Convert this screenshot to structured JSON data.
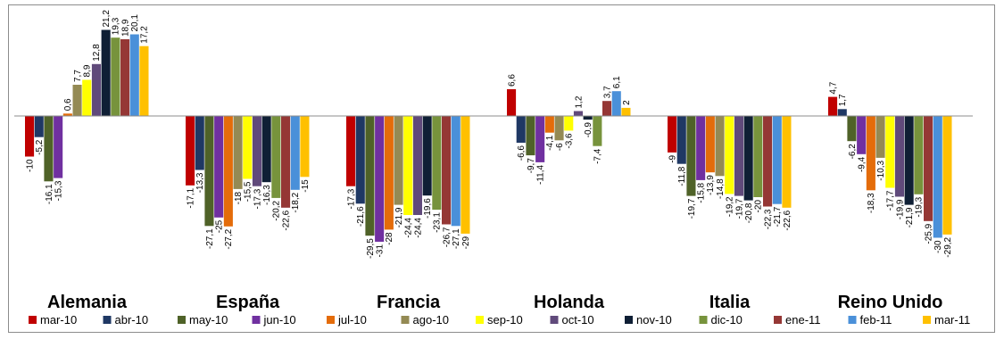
{
  "chart_data": {
    "type": "bar",
    "categories": [
      "Alemania",
      "España",
      "Francia",
      "Holanda",
      "Italia",
      "Reino Unido"
    ],
    "series": [
      {
        "name": "mar-10",
        "color": "#c00000",
        "values": [
          -10,
          -17.1,
          -17.3,
          6.6,
          -9,
          4.7
        ],
        "labels": [
          "-10",
          "-17,1",
          "-17,3",
          "6,6",
          "-9",
          "4,7"
        ]
      },
      {
        "name": "abr-10",
        "color": "#1f3864",
        "values": [
          -5.2,
          -13.3,
          -21.6,
          -6.6,
          -11.8,
          1.7
        ],
        "labels": [
          "-5,2",
          "-13,3",
          "-21,6",
          "-6,6",
          "-11,8",
          "1,7"
        ]
      },
      {
        "name": "may-10",
        "color": "#4f6228",
        "values": [
          -16.1,
          -27.1,
          -29.5,
          -9.7,
          -19.7,
          -6.2
        ],
        "labels": [
          "-16,1",
          "-27,1",
          "-29,5",
          "-9,7",
          "-19,7",
          "-6,2"
        ]
      },
      {
        "name": "jun-10",
        "color": "#7030a0",
        "values": [
          -15.3,
          -25,
          -31,
          -11.4,
          -15.8,
          -9.4
        ],
        "labels": [
          "-15,3",
          "-25",
          "-31",
          "-11,4",
          "-15,8",
          "-9,4"
        ]
      },
      {
        "name": "jul-10",
        "color": "#e46c0a",
        "values": [
          0.6,
          -27.2,
          -28,
          -4.1,
          -13.9,
          -18.3
        ],
        "labels": [
          "0,6",
          "-27,2",
          "-28",
          "-4,1",
          "-13,9",
          "-18,3"
        ]
      },
      {
        "name": "ago-10",
        "color": "#948a54",
        "values": [
          7.7,
          -18,
          -21.9,
          -6,
          -14.8,
          -10.3
        ],
        "labels": [
          "7,7",
          "-18",
          "-21,9",
          "-6",
          "-14,8",
          "-10,3"
        ]
      },
      {
        "name": "sep-10",
        "color": "#ffff00",
        "values": [
          8.9,
          -15.5,
          -24.4,
          -3.6,
          -19.2,
          -17.7
        ],
        "labels": [
          "8,9",
          "-15,5",
          "-24,4",
          "-3,6",
          "-19,2",
          "-17,7"
        ]
      },
      {
        "name": "oct-10",
        "color": "#604a7b",
        "values": [
          12.8,
          -17.3,
          -24.4,
          1.2,
          -19.7,
          -19.9
        ],
        "labels": [
          "12,8",
          "-17,3",
          "-24,4",
          "1,2",
          "-19,7",
          "-19,9"
        ]
      },
      {
        "name": "nov-10",
        "color": "#0f1f35",
        "values": [
          21.2,
          -16.3,
          -19.6,
          -0.9,
          -20.8,
          -21.9
        ],
        "labels": [
          "21,2",
          "-16,3",
          "-19,6",
          "-0,9",
          "-20,8",
          "-21,9"
        ]
      },
      {
        "name": "dic-10",
        "color": "#77933c",
        "values": [
          19.3,
          -20.2,
          -23.1,
          -7.4,
          -20,
          -19.3
        ],
        "labels": [
          "19,3",
          "-20,2",
          "-23,1",
          "-7,4",
          "-20",
          "-19,3"
        ]
      },
      {
        "name": "ene-11",
        "color": "#953735",
        "values": [
          18.9,
          -22.6,
          -26.7,
          3.7,
          -22.3,
          -25.9
        ],
        "labels": [
          "18,9",
          "-22,6",
          "-26,7",
          "3,7",
          "-22,3",
          "-25,9"
        ]
      },
      {
        "name": "feb-11",
        "color": "#4a90d9",
        "values": [
          20.1,
          -18.2,
          -27.1,
          6.1,
          -21.7,
          -30
        ],
        "labels": [
          "20,1",
          "-18,2",
          "-27,1",
          "6,1",
          "-21,7",
          "-30"
        ]
      },
      {
        "name": "mar-11",
        "color": "#ffc000",
        "values": [
          17.2,
          -15,
          -29,
          2,
          -22.6,
          -29.2
        ],
        "labels": [
          "17,2",
          "-15",
          "-29",
          "2",
          "-22,6",
          "-29,2"
        ]
      }
    ],
    "title": "",
    "xlabel": "",
    "ylabel": "",
    "ylim": [
      -35,
      24
    ],
    "grid": false,
    "legend": "bottom"
  }
}
